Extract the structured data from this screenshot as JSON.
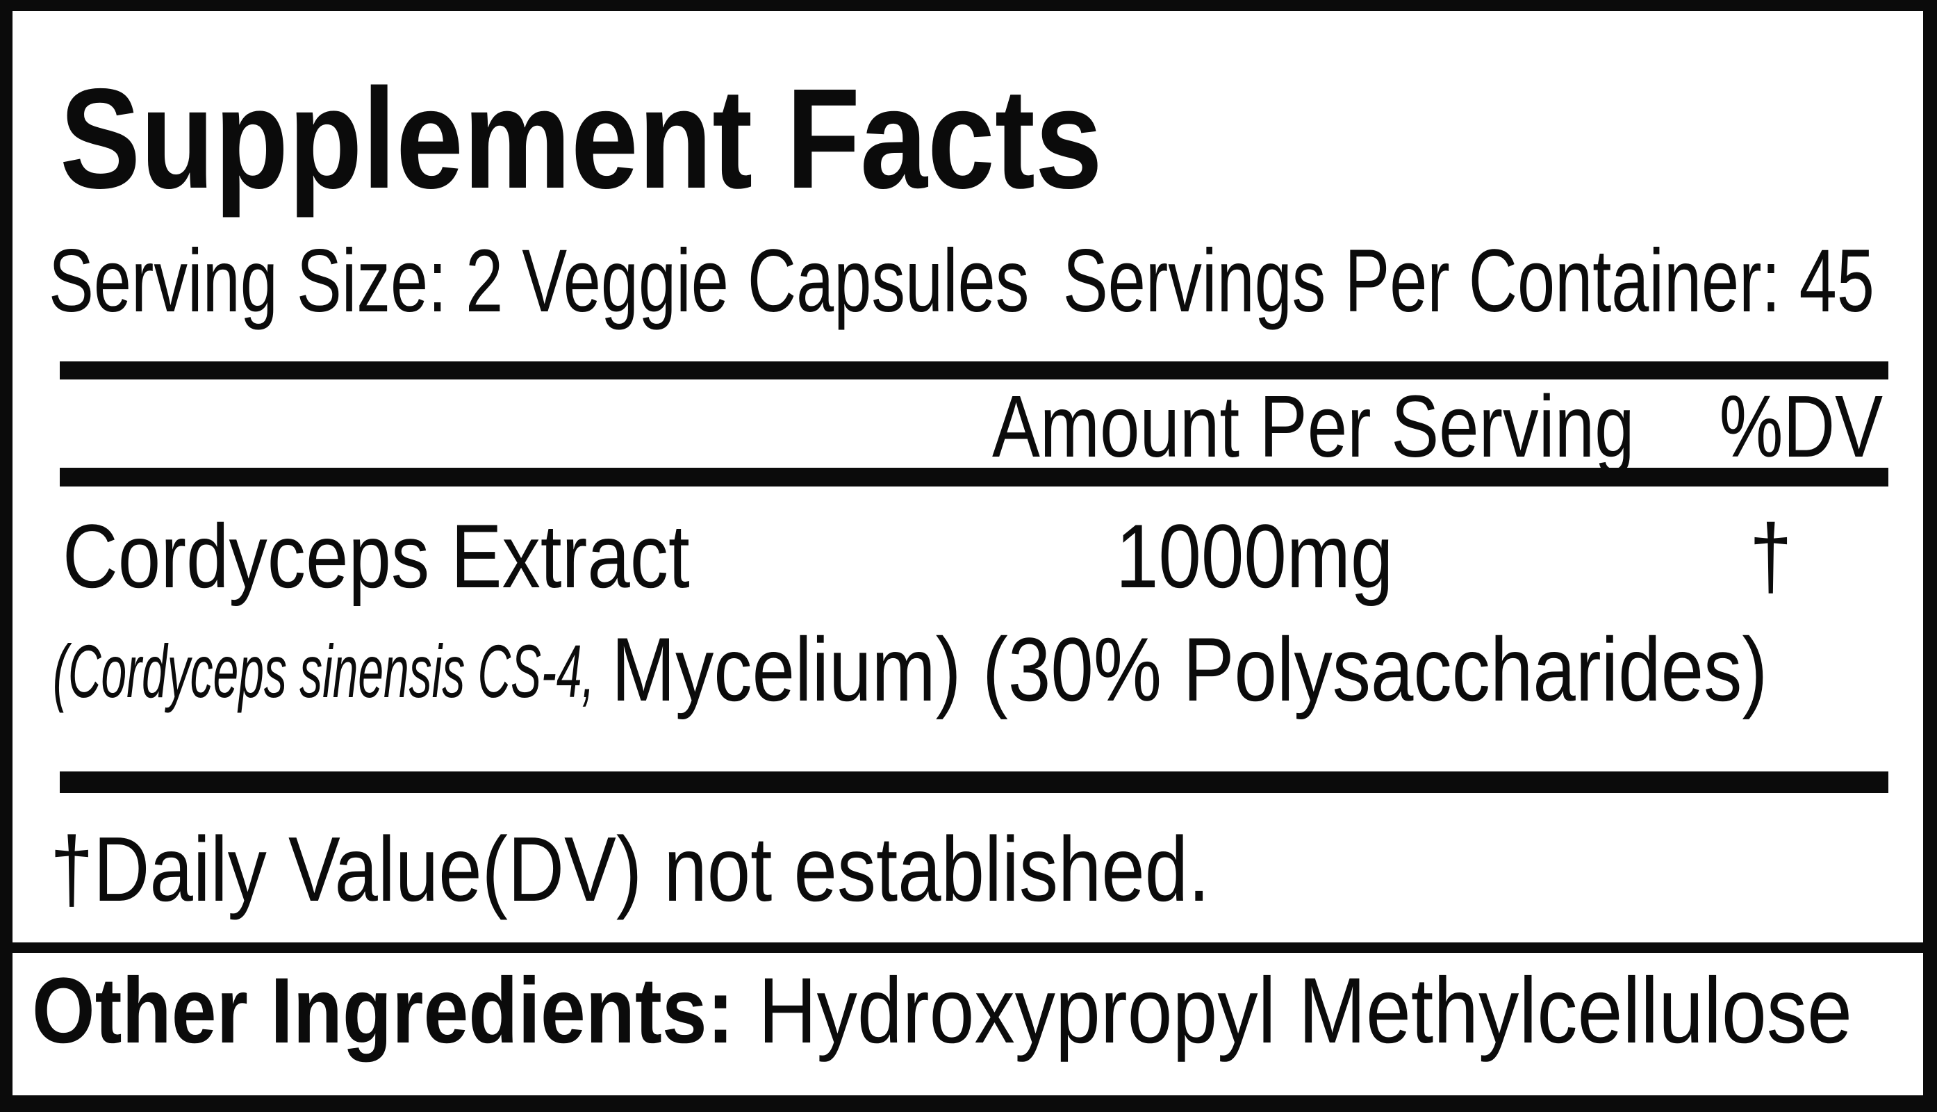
{
  "label": {
    "title": "Supplement Facts",
    "serving_size": "Serving Size: 2 Veggie Capsules",
    "servings_per_container": "Servings Per Container: 45",
    "columns": {
      "amount": "Amount Per Serving",
      "dv": "%DV"
    },
    "ingredient": {
      "name": "Cordyceps Extract",
      "detail_italic": "(Cordyceps sinensis CS-4,",
      "detail_regular": "Mycelium) (30% Polysaccharides)",
      "amount": "1000mg",
      "dv": "†"
    },
    "footnote": "†Daily Value(DV) not established.",
    "other_ingredients": {
      "label": "Other Ingredients:",
      "value": "Hydroxypropyl Methylcellulose"
    },
    "colors": {
      "ink": "#0b0b0b",
      "background": "#ffffff"
    }
  }
}
